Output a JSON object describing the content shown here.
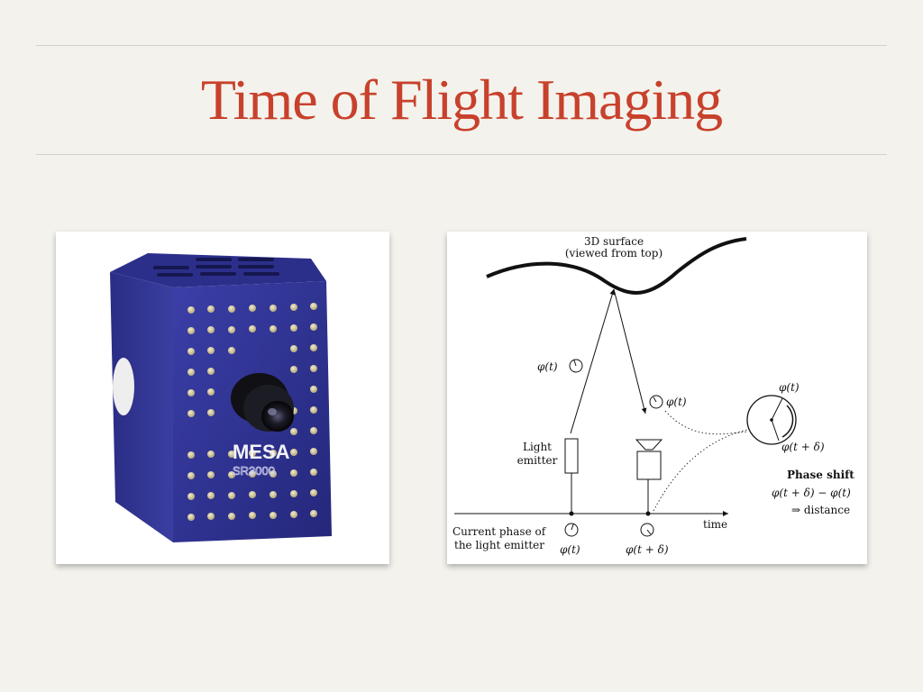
{
  "slide": {
    "title": "Time of Flight Imaging"
  },
  "camera_photo": {
    "brand": "MESA",
    "model": "SR3000"
  },
  "diagram": {
    "surface_label_line1": "3D surface",
    "surface_label_line2": "(viewed from top)",
    "phi_t_left": "φ(t)",
    "phi_t_return": "φ(t)",
    "light_emitter_line1": "Light",
    "light_emitter_line2": "emitter",
    "current_phase_line1": "Current phase of",
    "current_phase_line2": "the light emitter",
    "phi_t_bottom": "φ(t)",
    "phi_t_delta_bottom": "φ(t + δ)",
    "time_label": "time",
    "phi_t_circle": "φ(t)",
    "phi_t_delta_circle": "φ(t + δ)",
    "phase_shift_title": "Phase shift",
    "phase_shift_formula": "φ(t + δ) − φ(t)",
    "phase_shift_result": "⇒ distance"
  }
}
